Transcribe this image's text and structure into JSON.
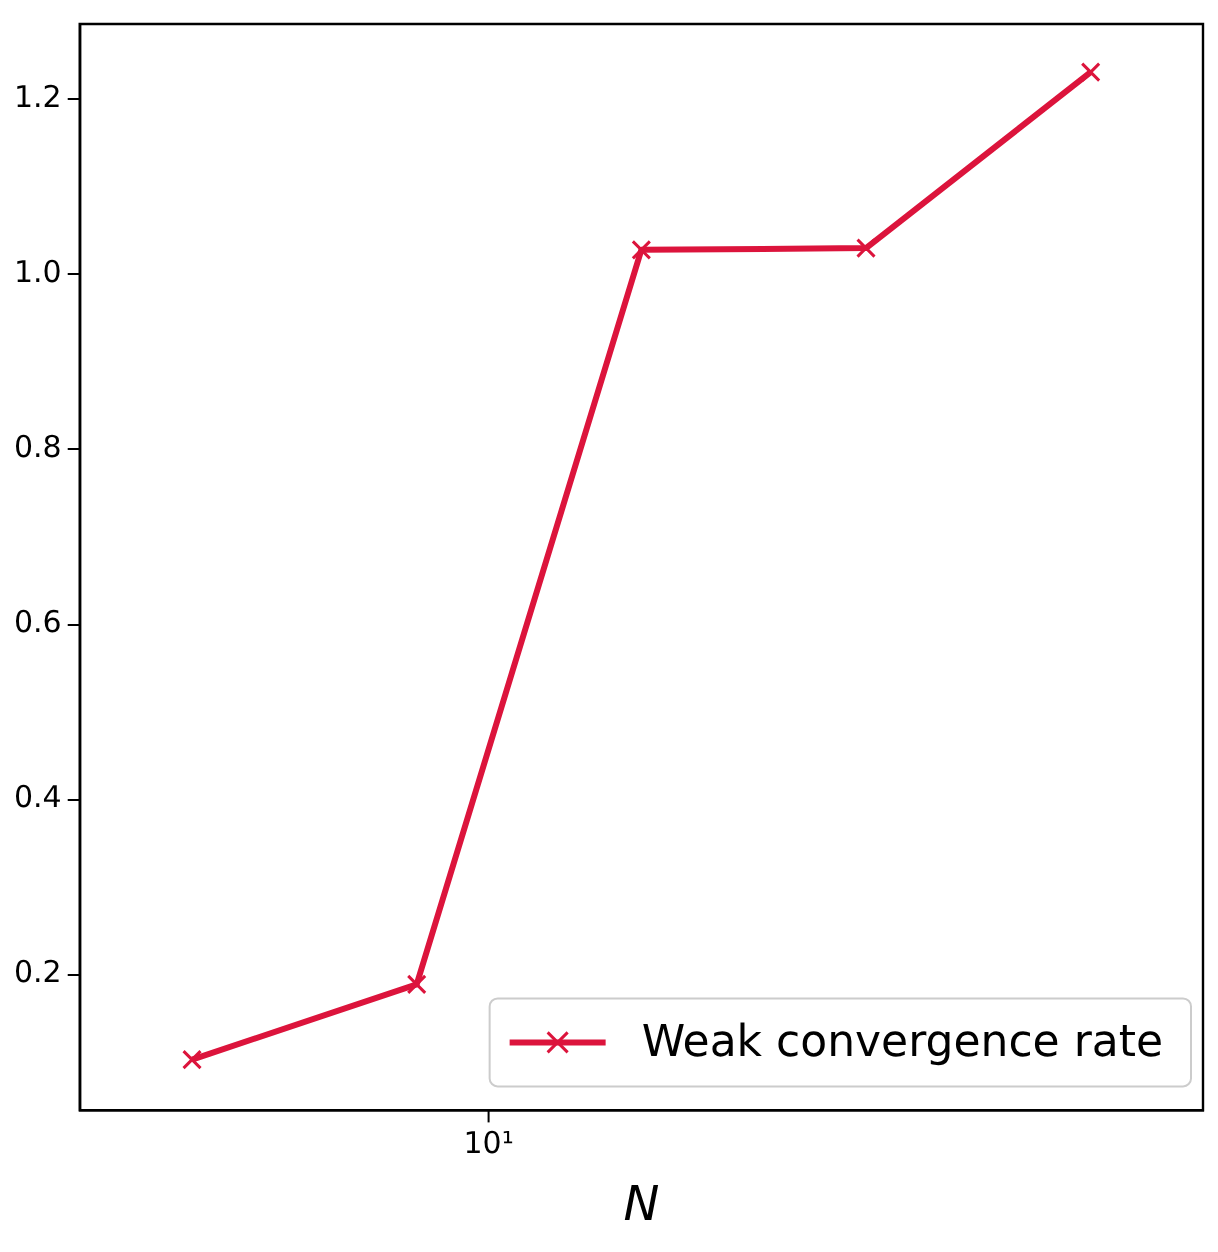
{
  "chart_data": {
    "type": "line",
    "xlabel": "N",
    "categories": [
      null,
      null,
      null,
      null,
      null
    ],
    "series": [
      {
        "name": "Weak convergence rate",
        "color": "#dc143c",
        "values": [
          0.103,
          0.189,
          1.028,
          1.03,
          1.231
        ]
      }
    ],
    "annotations": [
      "10¹"
    ],
    "ylim": [
      0.045,
      1.286
    ],
    "yticks": [
      0.2,
      0.4,
      0.6,
      0.8,
      {
        "value": 1.0,
        "label": "1.0"
      },
      1.2
    ],
    "grid": false,
    "legend": "bottom right",
    "marker": "cross",
    "line_style": "solid"
  }
}
